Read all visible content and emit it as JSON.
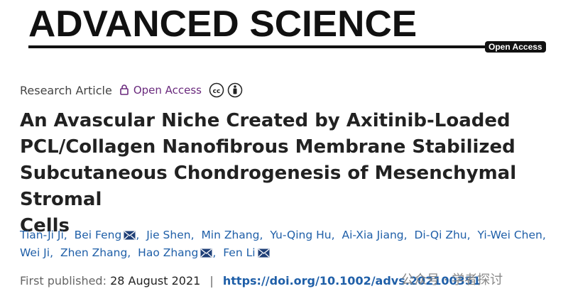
{
  "header": {
    "journal": "ADVANCED SCIENCE",
    "badge": "Open Access"
  },
  "article": {
    "type": "Research Article",
    "access": "Open Access",
    "title_lines": [
      "An Avascular Niche Created by Axitinib-Loaded",
      "PCL/Collagen Nanofibrous Membrane Stabilized",
      "Subcutaneous Chondrogenesis of Mesenchymal Stromal",
      "Cells"
    ],
    "author_separator": ",",
    "authors": [
      {
        "name": "Tian-Ji Ji",
        "email": false
      },
      {
        "name": "Bei Feng",
        "email": true
      },
      {
        "name": "Jie Shen",
        "email": false
      },
      {
        "name": "Min Zhang",
        "email": false
      },
      {
        "name": "Yu-Qing Hu",
        "email": false
      },
      {
        "name": "Ai-Xia Jiang",
        "email": false
      },
      {
        "name": "Di-Qi Zhu",
        "email": false
      },
      {
        "name": "Yi-Wei Chen",
        "email": false
      },
      {
        "name": "Wei Ji",
        "email": false
      },
      {
        "name": "Zhen Zhang",
        "email": false
      },
      {
        "name": "Hao Zhang",
        "email": true
      },
      {
        "name": "Fen Li",
        "email": true
      }
    ],
    "published_label": "First published:",
    "published_date": "28 August 2021",
    "meta_separator": "|",
    "doi": "https://doi.org/10.1002/advs.202100351"
  },
  "watermark": "公众号 · 学者探讨"
}
